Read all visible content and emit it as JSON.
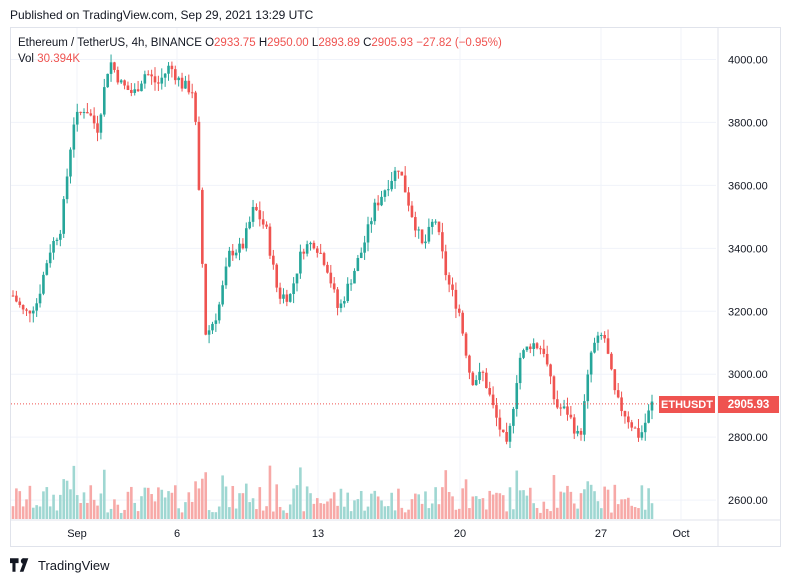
{
  "published": "Published on TradingView.com, Sep 29, 2021 13:29 UTC",
  "legend": {
    "title": "Ethereum / TetherUS, 4h, BINANCE",
    "o_label": "O",
    "o_value": "2933.75",
    "h_label": "H",
    "h_value": "2950.00",
    "l_label": "L",
    "l_value": "2893.89",
    "c_label": "C",
    "c_value": "2905.93",
    "change": "−27.82 (−0.95%)",
    "vol_label": "Vol",
    "vol_value": "30.394K"
  },
  "price_tag": {
    "symbol": "ETHUSDT",
    "price": "2905.93"
  },
  "footer": {
    "brand": "TradingView"
  },
  "colors": {
    "up": "#26a69a",
    "down": "#ef5350",
    "grid": "#f0f3fa",
    "up_vol": "#9fd7d2",
    "down_vol": "#f7a9a7"
  },
  "chart_data": {
    "type": "candlestick",
    "symbol": "ETHUSDT",
    "interval": "4h",
    "ylim": [
      2540,
      4100
    ],
    "y_ticks": [
      "4000.00",
      "3800.00",
      "3600.00",
      "3400.00",
      "3200.00",
      "3000.00",
      "2800.00",
      "2600.00"
    ],
    "x_ticks": [
      "Sep",
      "6",
      "13",
      "20",
      "27",
      "Oct"
    ],
    "last_close": 2905.93,
    "close_path": [
      [
        0,
        3250
      ],
      [
        1,
        3190
      ],
      [
        2,
        3230
      ],
      [
        3,
        3390
      ],
      [
        4,
        3470
      ],
      [
        5,
        3800
      ],
      [
        6,
        3850
      ],
      [
        7,
        3780
      ],
      [
        8,
        4000
      ],
      [
        9,
        3920
      ],
      [
        10,
        3890
      ],
      [
        11,
        3960
      ],
      [
        12,
        3920
      ],
      [
        13,
        3980
      ],
      [
        14,
        3920
      ],
      [
        15,
        3900
      ],
      [
        16,
        3120
      ],
      [
        17,
        3200
      ],
      [
        18,
        3390
      ],
      [
        19,
        3400
      ],
      [
        20,
        3530
      ],
      [
        21,
        3460
      ],
      [
        22,
        3250
      ],
      [
        23,
        3250
      ],
      [
        24,
        3400
      ],
      [
        25,
        3420
      ],
      [
        26,
        3350
      ],
      [
        27,
        3200
      ],
      [
        28,
        3300
      ],
      [
        29,
        3400
      ],
      [
        30,
        3530
      ],
      [
        31,
        3600
      ],
      [
        32,
        3660
      ],
      [
        33,
        3520
      ],
      [
        34,
        3400
      ],
      [
        35,
        3500
      ],
      [
        36,
        3300
      ],
      [
        37,
        3200
      ],
      [
        38,
        2980
      ],
      [
        39,
        3000
      ],
      [
        40,
        2870
      ],
      [
        41,
        2760
      ],
      [
        42,
        3050
      ],
      [
        43,
        3100
      ],
      [
        44,
        3080
      ],
      [
        45,
        2900
      ],
      [
        46,
        2880
      ],
      [
        47,
        2790
      ],
      [
        48,
        3080
      ],
      [
        49,
        3130
      ],
      [
        50,
        2920
      ],
      [
        51,
        2860
      ],
      [
        52,
        2800
      ],
      [
        53,
        2906
      ]
    ]
  }
}
